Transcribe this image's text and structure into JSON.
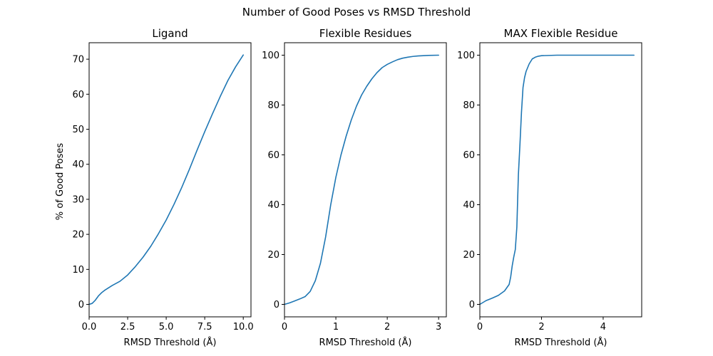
{
  "suptitle": "Number of Good Poses vs RMSD Threshold",
  "colors": {
    "line": "#1f77b4",
    "axis": "#000000",
    "background": "#ffffff"
  },
  "chart_data": [
    {
      "type": "line",
      "title": "Ligand",
      "xlabel": "RMSD Threshold (Å)",
      "ylabel": "% of Good Poses",
      "xlim": [
        0,
        10.5
      ],
      "ylim": [
        -3.55,
        74.7
      ],
      "xticks": [
        0,
        2.5,
        5,
        7.5,
        10
      ],
      "xtick_labels": [
        "0.0",
        "2.5",
        "5.0",
        "7.5",
        "10.0"
      ],
      "yticks": [
        0,
        10,
        20,
        30,
        40,
        50,
        60,
        70
      ],
      "ytick_labels": [
        "0",
        "10",
        "20",
        "30",
        "40",
        "50",
        "60",
        "70"
      ],
      "series": [
        {
          "name": "Ligand",
          "x": [
            0,
            0.2,
            0.4,
            0.6,
            0.8,
            1.0,
            1.5,
            2.0,
            2.5,
            3.0,
            3.5,
            4.0,
            4.5,
            5.0,
            5.5,
            6.0,
            6.5,
            7.0,
            7.5,
            8.0,
            8.5,
            9.0,
            9.5,
            10.0
          ],
          "values": [
            0,
            0.3,
            1.2,
            2.4,
            3.3,
            4.0,
            5.4,
            6.6,
            8.4,
            10.8,
            13.5,
            16.6,
            20.2,
            24.1,
            28.5,
            33.3,
            38.5,
            44.0,
            49.3,
            54.4,
            59.3,
            63.9,
            67.8,
            71.2
          ]
        }
      ]
    },
    {
      "type": "line",
      "title": "Flexible Residues",
      "xlabel": "RMSD Threshold (Å)",
      "ylabel": "",
      "xlim": [
        0,
        3.15
      ],
      "ylim": [
        -5,
        105
      ],
      "xticks": [
        0,
        1,
        2,
        3
      ],
      "xtick_labels": [
        "0",
        "1",
        "2",
        "3"
      ],
      "yticks": [
        0,
        20,
        40,
        60,
        80,
        100
      ],
      "ytick_labels": [
        "0",
        "20",
        "40",
        "60",
        "80",
        "100"
      ],
      "series": [
        {
          "name": "Flexible Residues",
          "x": [
            0,
            0.1,
            0.2,
            0.3,
            0.4,
            0.5,
            0.6,
            0.7,
            0.8,
            0.9,
            1.0,
            1.1,
            1.2,
            1.3,
            1.4,
            1.5,
            1.6,
            1.7,
            1.8,
            1.9,
            2.0,
            2.1,
            2.2,
            2.3,
            2.4,
            2.5,
            2.6,
            2.8,
            3.0
          ],
          "values": [
            0,
            0.6,
            1.4,
            2.2,
            3.1,
            5.2,
            9.5,
            16.5,
            27,
            40,
            51,
            60,
            67.5,
            74,
            79.5,
            84,
            87.5,
            90.5,
            93,
            95,
            96.3,
            97.3,
            98.2,
            98.8,
            99.2,
            99.5,
            99.7,
            99.9,
            100
          ]
        }
      ]
    },
    {
      "type": "line",
      "title": "MAX Flexible Residue",
      "xlabel": "RMSD Threshold (Å)",
      "ylabel": "",
      "xlim": [
        0,
        5.25
      ],
      "ylim": [
        -5,
        105
      ],
      "xticks": [
        0,
        2,
        4
      ],
      "xtick_labels": [
        "0",
        "2",
        "4"
      ],
      "yticks": [
        0,
        20,
        40,
        60,
        80,
        100
      ],
      "ytick_labels": [
        "0",
        "20",
        "40",
        "60",
        "80",
        "100"
      ],
      "series": [
        {
          "name": "MAX Flexible Residue",
          "x": [
            0,
            0.2,
            0.4,
            0.6,
            0.8,
            0.95,
            1.0,
            1.05,
            1.1,
            1.15,
            1.2,
            1.25,
            1.3,
            1.35,
            1.4,
            1.45,
            1.5,
            1.6,
            1.7,
            1.8,
            1.9,
            2.0,
            2.5,
            3.0,
            4.0,
            5.0
          ],
          "values": [
            0,
            1.5,
            2.5,
            3.6,
            5.4,
            8,
            11,
            15.5,
            19,
            22,
            31,
            52,
            64,
            77,
            87,
            91,
            93.5,
            96.5,
            98.5,
            99.2,
            99.6,
            99.8,
            100,
            100,
            100,
            100
          ]
        }
      ]
    }
  ]
}
